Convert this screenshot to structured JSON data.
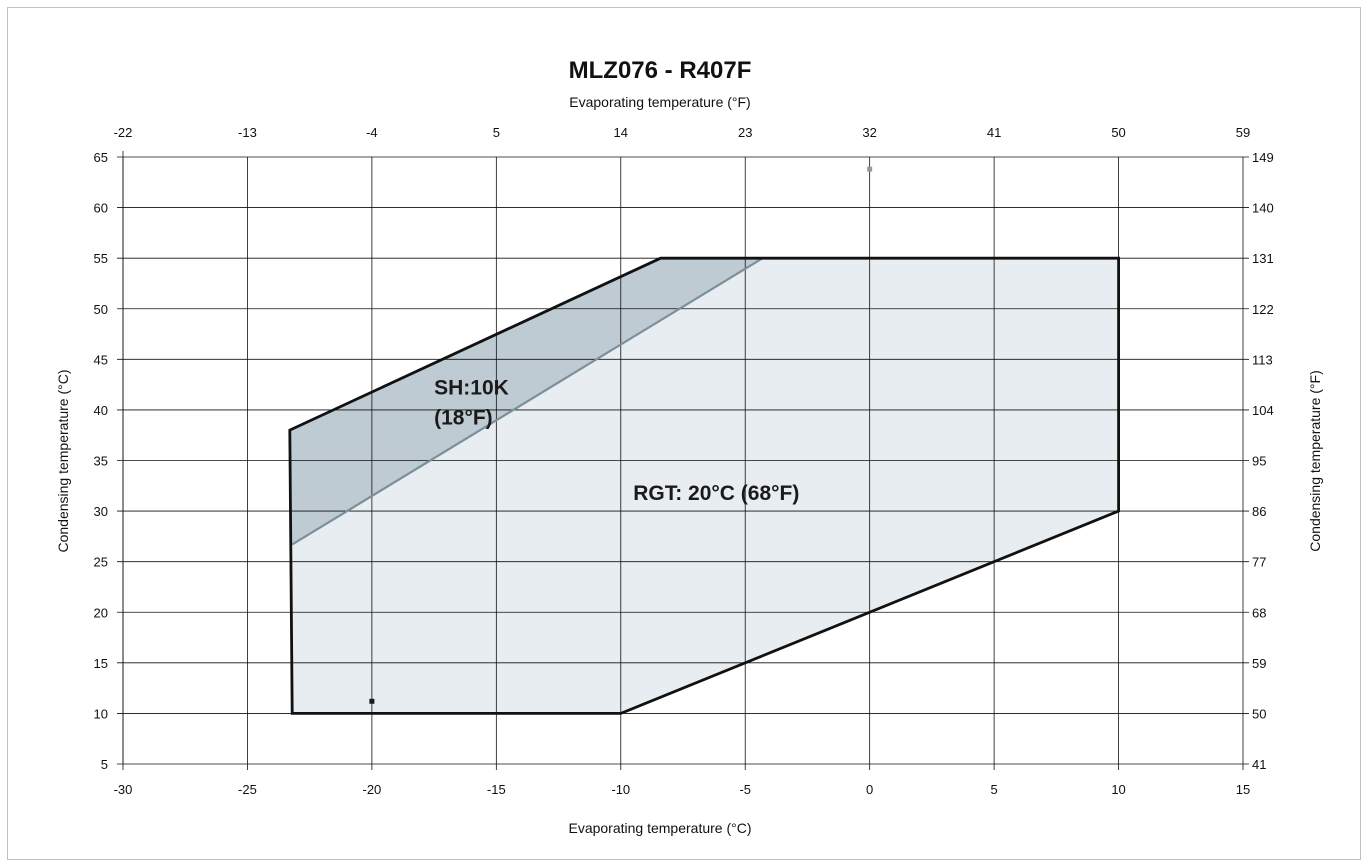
{
  "chart_data": {
    "type": "area",
    "title": "MLZ076  - R407F",
    "xlabel": "Evaporating temperature (°C)",
    "ylabel": "Condensing temperature (°C)",
    "x2label": "Evaporating temperature (°F)",
    "y2label": "Condensing temperature (°F)",
    "xlim": [
      -30,
      15
    ],
    "ylim": [
      5,
      65
    ],
    "x_ticks": [
      -30,
      -25,
      -20,
      -15,
      -10,
      -5,
      0,
      5,
      10,
      15
    ],
    "y_ticks": [
      5,
      10,
      15,
      20,
      25,
      30,
      35,
      40,
      45,
      50,
      55,
      60,
      65
    ],
    "x2_tick_labels": [
      "-22",
      "-13",
      "-4",
      "5",
      "14",
      "23",
      "32",
      "41",
      "50",
      "59"
    ],
    "y2_tick_labels": [
      "41",
      "50",
      "59",
      "68",
      "77",
      "86",
      "95",
      "104",
      "113",
      "122",
      "131",
      "140",
      "149"
    ],
    "grid": true,
    "envelope": [
      {
        "x": -23.3,
        "y": 38
      },
      {
        "x": -8.4,
        "y": 55
      },
      {
        "x": 10,
        "y": 55
      },
      {
        "x": 10,
        "y": 30
      },
      {
        "x": -10,
        "y": 10
      },
      {
        "x": -23.2,
        "y": 10
      }
    ],
    "superheat_region": [
      {
        "x": -23.3,
        "y": 38
      },
      {
        "x": -8.4,
        "y": 55
      },
      {
        "x": -4.3,
        "y": 55
      },
      {
        "x": -23.2,
        "y": 26.7
      }
    ],
    "markers": [
      {
        "x": -20,
        "y": 11.2,
        "color": "#1a1a1a"
      },
      {
        "x": 0,
        "y": 63.8,
        "color": "#999999"
      }
    ],
    "annotations": [
      {
        "lines": [
          "SH:10K",
          "(18°F)"
        ],
        "x": -17.5,
        "y": 41.5
      },
      {
        "lines": [
          "RGT: 20°C (68°F)"
        ],
        "x": -9.5,
        "y": 31.1
      }
    ],
    "colors": {
      "envelope_fill": "#e7edf0",
      "superheat_fill": "#bfcbd2",
      "envelope_stroke": "#111111",
      "superheat_line": "#7b8f9c",
      "grid": "#111111"
    }
  }
}
